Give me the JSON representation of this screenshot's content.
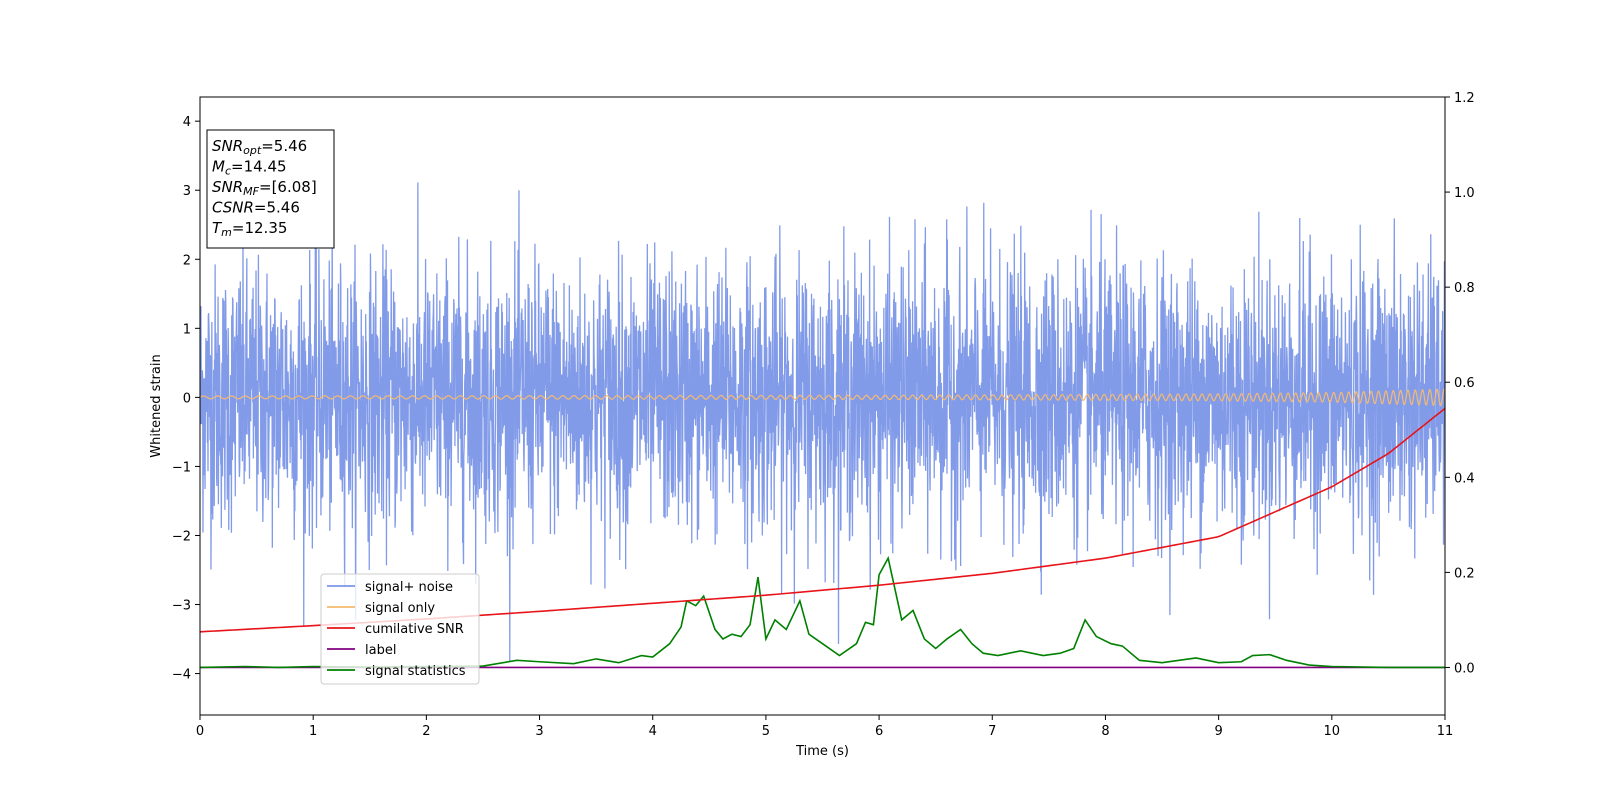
{
  "chart_data": {
    "type": "line",
    "xlabel": "Time (s)",
    "ylabel": "Whitened strain",
    "xlim": [
      0,
      11
    ],
    "ylim_left": [
      -4.6,
      4.35
    ],
    "ylim_right": [
      -0.1,
      1.2
    ],
    "x_ticks": [
      0,
      1,
      2,
      3,
      4,
      5,
      6,
      7,
      8,
      9,
      10,
      11
    ],
    "y_left_ticks": [
      -4,
      -3,
      -2,
      -1,
      0,
      1,
      2,
      3,
      4
    ],
    "y_right_ticks": [
      0.0,
      0.2,
      0.4,
      0.6,
      0.8,
      1.0,
      1.2
    ],
    "grid": false,
    "legend_position": "lower-left",
    "annotation": {
      "lines": [
        {
          "base": "SNR",
          "sub": "opt",
          "value": "=5.46"
        },
        {
          "base": "M",
          "sub": "c",
          "value": "=14.45"
        },
        {
          "base": "SNR",
          "sub": "MF",
          "value": "=[6.08]"
        },
        {
          "base": "CSNR",
          "sub": "",
          "value": "=5.46"
        },
        {
          "base": "T",
          "sub": "m",
          "value": "=12.35"
        }
      ]
    },
    "series": [
      {
        "name": "signal+ noise",
        "color": "#7b96e8",
        "axis": "left",
        "description_values": {
          "mean": 0,
          "std": 1,
          "min": -3.95,
          "max": 3.62
        }
      },
      {
        "name": "signal only",
        "color": "#f5b971",
        "axis": "left",
        "x": [
          0,
          6,
          9,
          10,
          11
        ],
        "amplitude": [
          0.02,
          0.03,
          0.05,
          0.07,
          0.12
        ]
      },
      {
        "name": "cumilative SNR",
        "color": "#e8141a",
        "axis": "right",
        "x": [
          0,
          1,
          2,
          3,
          4,
          5,
          6,
          7,
          8,
          9,
          10,
          10.5,
          11
        ],
        "values": [
          0.075,
          0.088,
          0.102,
          0.118,
          0.135,
          0.152,
          0.173,
          0.198,
          0.23,
          0.275,
          0.38,
          0.45,
          0.545
        ]
      },
      {
        "name": "label",
        "color": "#800080",
        "axis": "right",
        "x": [
          0,
          11
        ],
        "values": [
          0.0,
          0.0
        ]
      },
      {
        "name": "signal statistics",
        "color": "#008000",
        "axis": "right",
        "x": [
          0,
          0.4,
          0.7,
          1.0,
          1.5,
          2.0,
          2.5,
          2.8,
          3.0,
          3.3,
          3.5,
          3.7,
          3.9,
          4.0,
          4.15,
          4.25,
          4.3,
          4.38,
          4.45,
          4.55,
          4.62,
          4.7,
          4.78,
          4.86,
          4.93,
          5.0,
          5.08,
          5.18,
          5.3,
          5.38,
          5.5,
          5.65,
          5.8,
          5.88,
          5.95,
          6.0,
          6.08,
          6.2,
          6.3,
          6.4,
          6.5,
          6.6,
          6.72,
          6.82,
          6.92,
          7.05,
          7.25,
          7.45,
          7.6,
          7.72,
          7.82,
          7.92,
          8.05,
          8.15,
          8.3,
          8.5,
          8.8,
          9.0,
          9.2,
          9.3,
          9.45,
          9.6,
          9.8,
          10.0,
          10.5,
          11.0
        ],
        "values": [
          0.0,
          0.002,
          0.0,
          0.002,
          0.001,
          0.002,
          0.003,
          0.015,
          0.012,
          0.008,
          0.018,
          0.01,
          0.025,
          0.022,
          0.05,
          0.085,
          0.14,
          0.13,
          0.15,
          0.08,
          0.06,
          0.07,
          0.065,
          0.09,
          0.19,
          0.06,
          0.1,
          0.08,
          0.14,
          0.07,
          0.05,
          0.025,
          0.05,
          0.095,
          0.09,
          0.195,
          0.23,
          0.1,
          0.12,
          0.06,
          0.04,
          0.06,
          0.08,
          0.05,
          0.03,
          0.025,
          0.035,
          0.025,
          0.03,
          0.04,
          0.1,
          0.065,
          0.05,
          0.045,
          0.015,
          0.01,
          0.02,
          0.01,
          0.012,
          0.025,
          0.027,
          0.015,
          0.005,
          0.002,
          0.0,
          0.0
        ]
      }
    ]
  }
}
